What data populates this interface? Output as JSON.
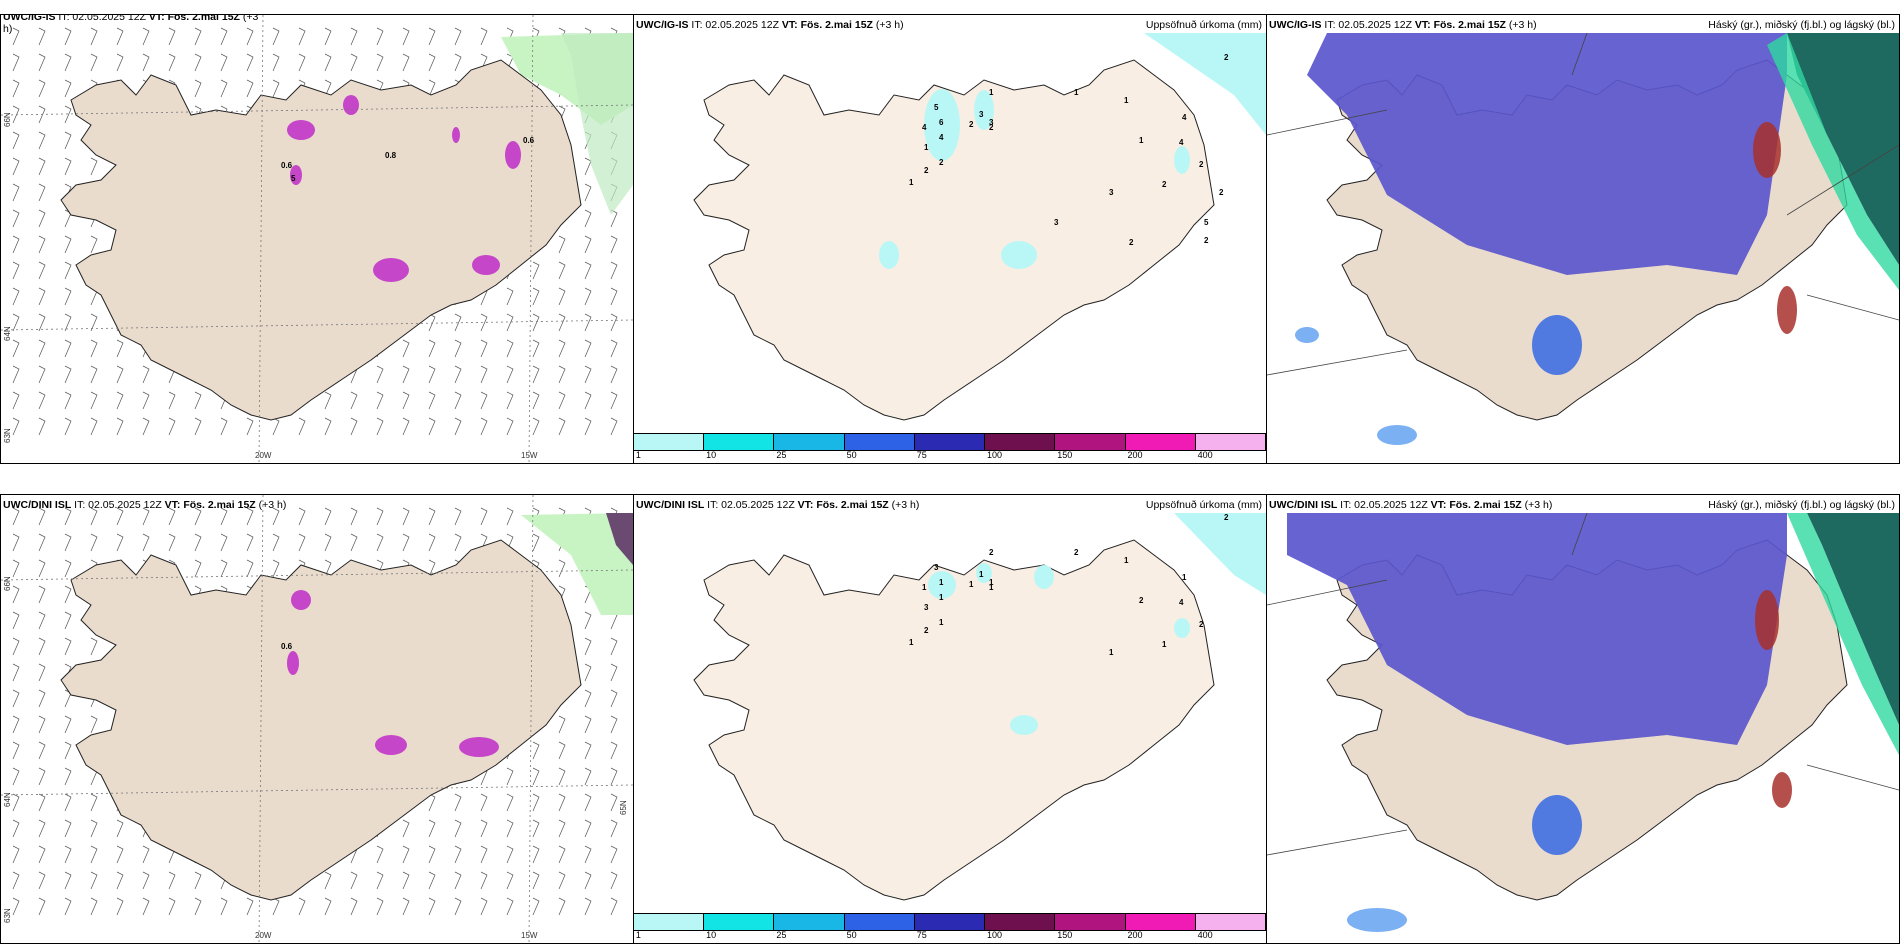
{
  "rows": [
    {
      "wind_panel": {
        "model": "UWC/IG-IS",
        "it": "IT: 02.05.2025 12Z",
        "vt": "VT: Fös. 2.mai 15Z",
        "lead": "(+3",
        "lead_cont": "h)",
        "labels": [
          "0.6",
          "0.8",
          "0.6",
          "5"
        ]
      },
      "precip_panel": {
        "model": "UWC/IG-IS",
        "it": "IT: 02.05.2025 12Z",
        "vt": "VT: Fös. 2.mai 15Z",
        "lead": "(+3 h)",
        "right_title": "Uppsöfnuð úrkoma (mm)",
        "values": [
          "2",
          "1",
          "1",
          "5",
          "3",
          "3",
          "6",
          "4",
          "2",
          "2",
          "4",
          "1",
          "2",
          "2",
          "1",
          "1",
          "1",
          "4",
          "4",
          "2",
          "2",
          "3",
          "2",
          "5",
          "2",
          "3",
          "2"
        ]
      },
      "cloud_panel": {
        "model": "UWC/IG-IS",
        "it": "IT: 02.05.2025 12Z",
        "vt": "VT: Fös. 2.mai 15Z",
        "lead": "(+3 h)",
        "right_title": "Háský (gr.), miðský (fj.bl.) og lágský (bl.)"
      }
    },
    {
      "wind_panel": {
        "model": "UWC/DINI ISL",
        "it": "IT: 02.05.2025 12Z",
        "vt": "VT: Fös. 2.mai 15Z",
        "lead": "(+3 h)",
        "lead_cont": "",
        "labels": [
          "0.6"
        ]
      },
      "precip_panel": {
        "model": "UWC/DINI ISL",
        "it": "IT: 02.05.2025 12Z",
        "vt": "VT: Fös. 2.mai 15Z",
        "lead": "(+3 h)",
        "right_title": "Uppsöfnuð úrkoma (mm)",
        "values": [
          "2",
          "2",
          "2",
          "3",
          "1",
          "1",
          "1",
          "1",
          "1",
          "1",
          "1",
          "3",
          "1",
          "2",
          "1",
          "1",
          "2",
          "1",
          "4",
          "2",
          "1",
          "1"
        ]
      },
      "cloud_panel": {
        "model": "UWC/DINI ISL",
        "it": "IT: 02.05.2025 12Z",
        "vt": "VT: Fös. 2.mai 15Z",
        "lead": "(+3 h)",
        "right_title": "Háský (gr.), miðský (fj.bl.) og lágský (bl.)"
      }
    }
  ],
  "legend": {
    "ticks": [
      "1",
      "10",
      "25",
      "50",
      "75",
      "100",
      "150",
      "200",
      "400"
    ],
    "colors": [
      "#b9f7f7",
      "#12e4e6",
      "#18b7e6",
      "#2e62e6",
      "#2a2bb2",
      "#6e0f4e",
      "#b0157f",
      "#f01ab4",
      "#f5b0ee"
    ]
  },
  "grid_labels": {
    "lon": [
      "20W",
      "15W"
    ],
    "lat": [
      "66N",
      "65N",
      "64N",
      "63N"
    ]
  },
  "colors": {
    "land": "#eadccd",
    "land_light": "#f8eee3",
    "sea_cyan": "#b9f7f7",
    "green": "#c8f4c4",
    "magenta": "#c546c9",
    "cloud_mid": "#5a56cc",
    "cloud_low": "#2b62e6",
    "cloud_high": "#1f6a60"
  }
}
